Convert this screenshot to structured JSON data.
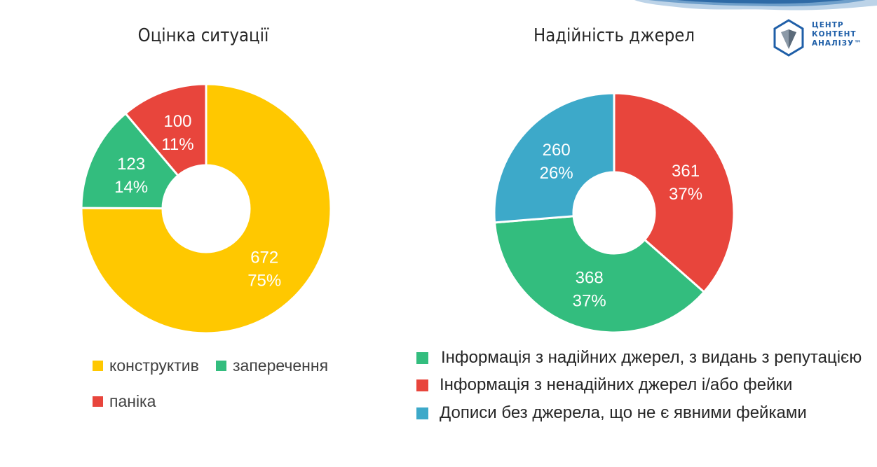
{
  "chart_data": [
    {
      "type": "pie",
      "title": "Оцінка ситуації",
      "slices": [
        {
          "name": "конструктив",
          "value": 672,
          "percent": "75%",
          "color": "#FFC800"
        },
        {
          "name": "заперечення",
          "value": 123,
          "percent": "14%",
          "color": "#33BD7E"
        },
        {
          "name": "паніка",
          "value": 100,
          "percent": "11%",
          "color": "#E8453C"
        }
      ],
      "legend_placement": "bottom"
    },
    {
      "type": "pie",
      "title": "Надійність джерел",
      "slices": [
        {
          "name": "Інформація з ненадійних джерел і/або фейки",
          "value": 361,
          "percent": "37%",
          "color": "#E8453C"
        },
        {
          "name": "Інформація з надійних джерел, з видань з репутацією",
          "value": 368,
          "percent": "37%",
          "color": "#33BD7E"
        },
        {
          "name": "Дописи без джерела, що не є явними фейками",
          "value": 260,
          "percent": "26%",
          "color": "#3DA9C9"
        }
      ],
      "legend_order": [
        1,
        0,
        2
      ],
      "legend_placement": "bottom"
    }
  ],
  "logo": {
    "line1": "ЦЕНТР",
    "line2": "КОНТЕНТ",
    "line3": "АНАЛІЗУ™",
    "color": "#1F5FA8"
  }
}
